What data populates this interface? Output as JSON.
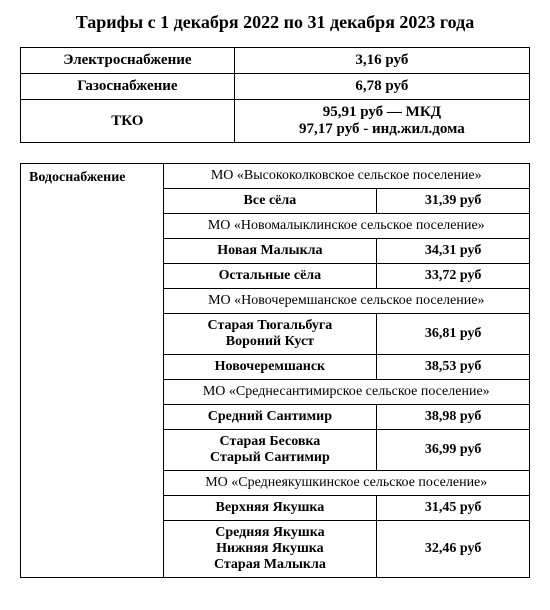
{
  "title": "Тарифы с 1 декабря 2022 по 31 декабря 2023 года",
  "top": {
    "rows": [
      {
        "label": "Электроснабжение",
        "value": "3,16 руб"
      },
      {
        "label": "Газоснабжение",
        "value": "6,78 руб"
      },
      {
        "label": "ТКО",
        "value1": "95,91 руб — МКД",
        "value2": "97,17 руб - инд.жил.дома"
      }
    ]
  },
  "water": {
    "header": "Водоснабжение",
    "sections": [
      {
        "mo": "МО «Высококолковское сельское поселение»",
        "rows": [
          {
            "place": "Все сёла",
            "price": "31,39 руб"
          }
        ]
      },
      {
        "mo": "МО «Новомалыклинское сельское поселение»",
        "rows": [
          {
            "place": "Новая Малыкла",
            "price": "34,31 руб"
          },
          {
            "place": "Остальные сёла",
            "price": "33,72 руб"
          }
        ]
      },
      {
        "mo": "МО «Новочеремшанское сельское поселение»",
        "rows": [
          {
            "place1": "Старая Тюгальбуга",
            "place2": "Вороний Куст",
            "price": "36,81 руб"
          },
          {
            "place": "Новочеремшанск",
            "price": "38,53 руб"
          }
        ]
      },
      {
        "mo": "МО «Среднесантимирское сельское поселение»",
        "rows": [
          {
            "place": "Средний Сантимир",
            "price": "38,98 руб"
          },
          {
            "place1": "Старая Бесовка",
            "place2": "Старый Сантимир",
            "price": "36,99 руб"
          }
        ]
      },
      {
        "mo": "МО «Среднеякушкинское сельское поселение»",
        "rows": [
          {
            "place": "Верхняя Якушка",
            "price": "31,45 руб"
          },
          {
            "place1": "Средняя Якушка",
            "place2": "Нижняя Якушка",
            "place3": "Старая Малыкла",
            "price": "32,46 руб"
          }
        ]
      }
    ]
  }
}
